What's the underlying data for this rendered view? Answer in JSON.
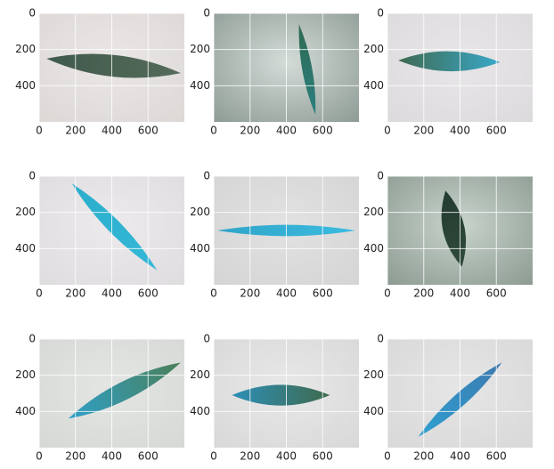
{
  "chart_data": [
    {
      "type": "image",
      "xlim": [
        0,
        800
      ],
      "ylim": [
        600,
        0
      ],
      "xticks": [
        0,
        200,
        400,
        600
      ],
      "yticks": [
        0,
        200,
        400
      ],
      "grid": true
    },
    {
      "type": "image",
      "xlim": [
        0,
        800
      ],
      "ylim": [
        600,
        0
      ],
      "xticks": [
        0,
        200,
        400,
        600
      ],
      "yticks": [
        0,
        200,
        400
      ],
      "grid": true
    },
    {
      "type": "image",
      "xlim": [
        0,
        800
      ],
      "ylim": [
        600,
        0
      ],
      "xticks": [
        0,
        200,
        400,
        600
      ],
      "yticks": [
        0,
        200,
        400
      ],
      "grid": true
    },
    {
      "type": "image",
      "xlim": [
        0,
        800
      ],
      "ylim": [
        600,
        0
      ],
      "xticks": [
        0,
        200,
        400,
        600
      ],
      "yticks": [
        0,
        200,
        400
      ],
      "grid": true
    },
    {
      "type": "image",
      "xlim": [
        0,
        800
      ],
      "ylim": [
        600,
        0
      ],
      "xticks": [
        0,
        200,
        400,
        600
      ],
      "yticks": [
        0,
        200,
        400
      ],
      "grid": true
    },
    {
      "type": "image",
      "xlim": [
        0,
        800
      ],
      "ylim": [
        600,
        0
      ],
      "xticks": [
        0,
        200,
        400,
        600
      ],
      "yticks": [
        0,
        200,
        400
      ],
      "grid": true
    },
    {
      "type": "image",
      "xlim": [
        0,
        800
      ],
      "ylim": [
        600,
        0
      ],
      "xticks": [
        0,
        200,
        400,
        600
      ],
      "yticks": [
        0,
        200,
        400
      ],
      "grid": true
    },
    {
      "type": "image",
      "xlim": [
        0,
        800
      ],
      "ylim": [
        600,
        0
      ],
      "xticks": [
        0,
        200,
        400,
        600
      ],
      "yticks": [
        0,
        200,
        400
      ],
      "grid": true
    },
    {
      "type": "image",
      "xlim": [
        0,
        800
      ],
      "ylim": [
        600,
        0
      ],
      "xticks": [
        0,
        200,
        400,
        600
      ],
      "yticks": [
        0,
        200,
        400
      ],
      "grid": true
    }
  ]
}
